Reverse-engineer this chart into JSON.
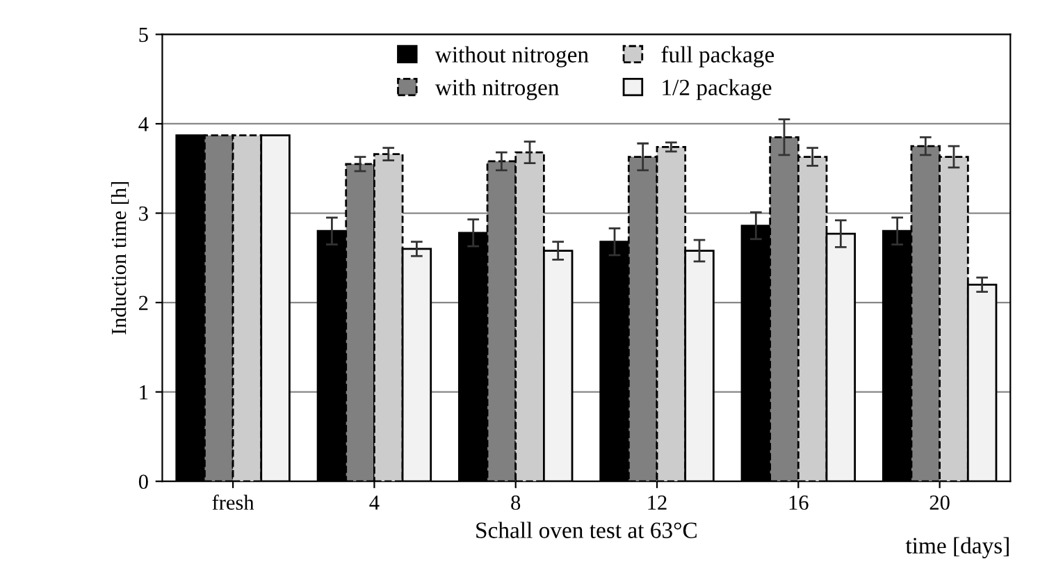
{
  "chart_data": {
    "type": "bar",
    "xlabel": "Schall oven test at 63°C",
    "ylabel": "Induction time [h]",
    "categories": [
      "fresh",
      "4",
      "8",
      "12",
      "16",
      "20"
    ],
    "series": [
      {
        "name": "without nitrogen",
        "color": "#000000",
        "line_style": "solid",
        "values": [
          3.87,
          2.8,
          2.78,
          2.68,
          2.86,
          2.8
        ],
        "errors": [
          null,
          0.15,
          0.15,
          0.15,
          0.15,
          0.15
        ]
      },
      {
        "name": "with nitrogen",
        "color": "#808080",
        "line_style": "dashed",
        "values": [
          3.87,
          3.55,
          3.58,
          3.63,
          3.85,
          3.75
        ],
        "errors": [
          null,
          0.08,
          0.1,
          0.15,
          0.2,
          0.1
        ]
      },
      {
        "name": "full package",
        "color": "#cccccc",
        "line_style": "dashed",
        "values": [
          3.87,
          3.66,
          3.68,
          3.74,
          3.63,
          3.63
        ],
        "errors": [
          null,
          0.07,
          0.12,
          0.05,
          0.1,
          0.12
        ]
      },
      {
        "name": "1/2 package",
        "color": "#f2f2f2",
        "line_style": "solid",
        "values": [
          3.87,
          2.6,
          2.58,
          2.58,
          2.77,
          2.2
        ],
        "errors": [
          null,
          0.08,
          0.1,
          0.12,
          0.15,
          0.08
        ]
      }
    ],
    "ylim": [
      0,
      5
    ],
    "yticks": [
      0,
      1,
      2,
      3,
      4,
      5
    ],
    "grid": "y",
    "legend": "top",
    "annotations": [
      "time [days]"
    ]
  }
}
